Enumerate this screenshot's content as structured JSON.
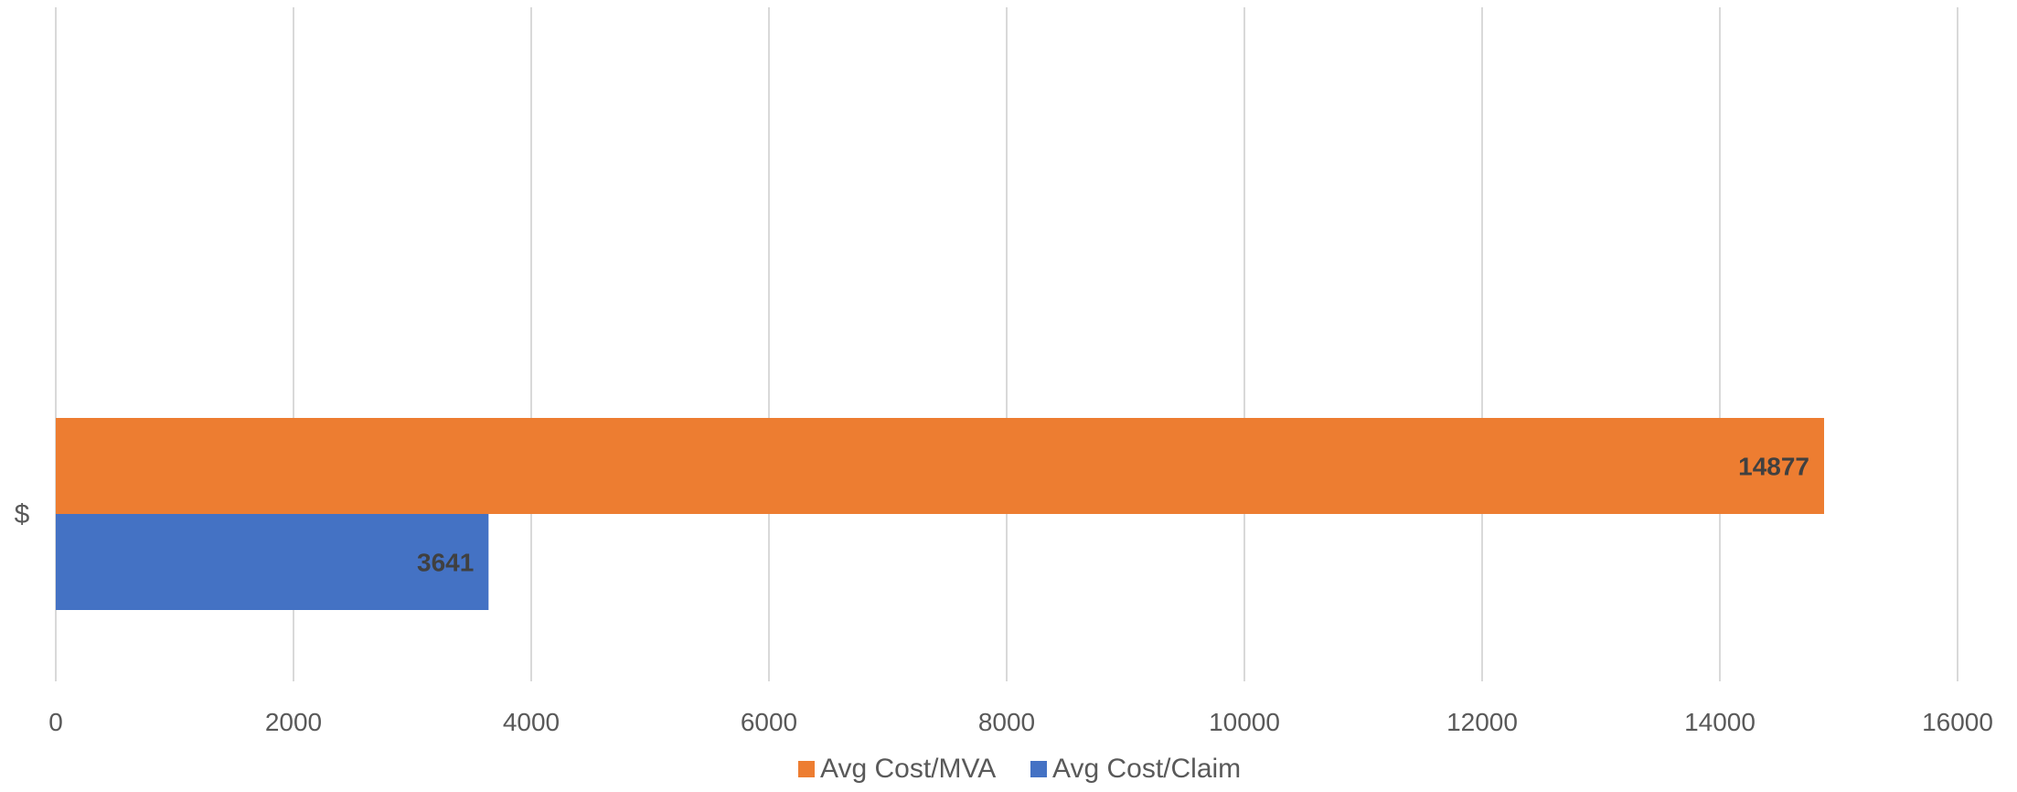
{
  "chart_data": {
    "type": "bar",
    "orientation": "horizontal",
    "categories": [
      "$"
    ],
    "series": [
      {
        "name": "Avg Cost/MVA",
        "values": [
          14877
        ],
        "color": "#ED7D31"
      },
      {
        "name": "Avg Cost/Claim",
        "values": [
          3641
        ],
        "color": "#4472C4"
      }
    ],
    "xlim": [
      0,
      16000
    ],
    "x_ticks": [
      0,
      2000,
      4000,
      6000,
      8000,
      10000,
      12000,
      14000,
      16000
    ],
    "data_labels": true,
    "grid": "vertical",
    "legend_position": "bottom",
    "title": "",
    "xlabel": "",
    "ylabel": ""
  }
}
